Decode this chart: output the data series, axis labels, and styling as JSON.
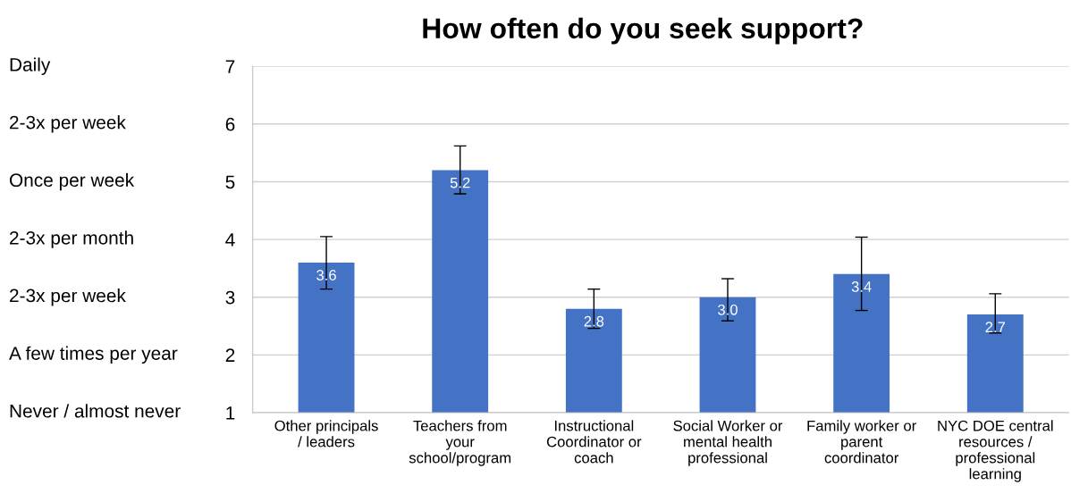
{
  "chart_data": {
    "type": "bar",
    "title": "How often do you seek support?",
    "categories": [
      "Other principals / leaders",
      "Teachers from your school/program",
      "Instructional Coordinator or coach",
      "Social Worker or mental health professional",
      "Family worker or parent coordinator",
      "NYC DOE central resources / professional learning"
    ],
    "values": [
      3.6,
      5.2,
      2.8,
      3.0,
      3.4,
      2.7
    ],
    "color": "#4472c4",
    "errors": [
      [
        3.14,
        4.05
      ],
      [
        4.79,
        5.62
      ],
      [
        2.46,
        3.14
      ],
      [
        2.59,
        3.32
      ],
      [
        2.77,
        4.04
      ],
      [
        2.38,
        3.06
      ]
    ],
    "value_labels": [
      "3.6",
      "5.2",
      "2.8",
      "3.0",
      "3.4",
      "2.7"
    ],
    "ylim": [
      1,
      7
    ],
    "yticks": [
      1,
      2,
      3,
      4,
      5,
      6,
      7
    ],
    "annotations": [
      "Daily",
      "2-3x per week",
      "Once per week",
      "2-3x per month",
      "2-3x per week",
      "A few times per year",
      "Never / almost never"
    ],
    "grid": "y"
  }
}
